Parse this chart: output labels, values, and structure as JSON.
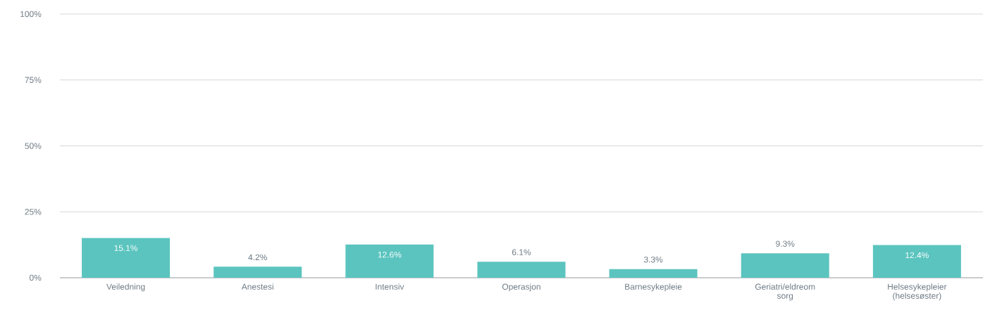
{
  "chart_data": {
    "type": "bar",
    "categories": [
      "Veiledning",
      "Anestesi",
      "Intensiv",
      "Operasjon",
      "Barnesykepleie",
      "Geriatri/eldreom sorg",
      "Helsesykepleier (helsesøster)"
    ],
    "values": [
      15.1,
      4.2,
      12.6,
      6.1,
      3.3,
      9.3,
      12.4
    ],
    "value_labels": [
      "15.1%",
      "4.2%",
      "12.6%",
      "6.1%",
      "3.3%",
      "9.3%",
      "12.4%"
    ],
    "color": "#5bc4bf",
    "ylim": [
      0,
      100
    ],
    "yticks": [
      {
        "value": 0,
        "label": "0%"
      },
      {
        "value": 25,
        "label": "25%"
      },
      {
        "value": 50,
        "label": "50%"
      },
      {
        "value": 75,
        "label": "75%"
      },
      {
        "value": 100,
        "label": "100%"
      }
    ],
    "grid": "y"
  }
}
